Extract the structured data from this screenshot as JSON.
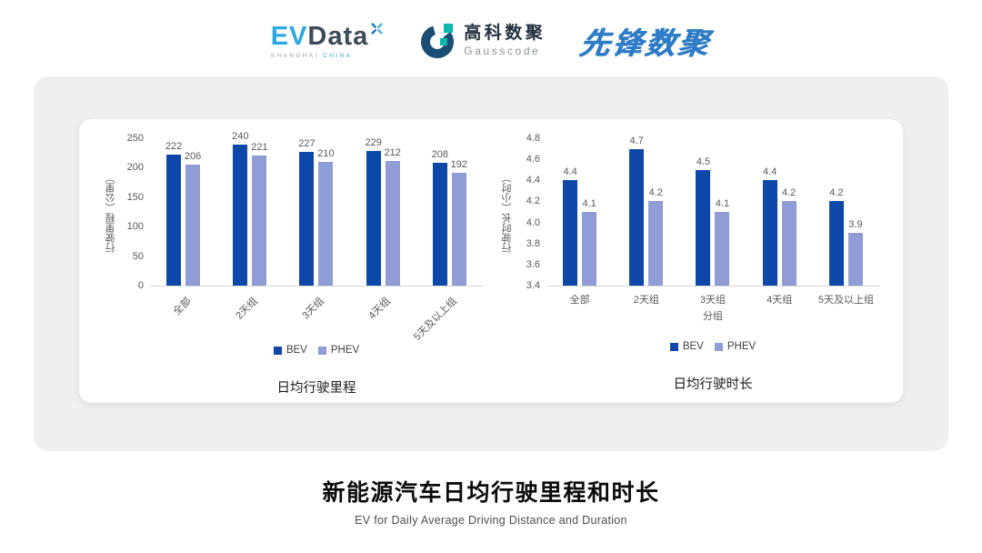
{
  "header": {
    "evdata": {
      "ev": "EV",
      "data": "Data",
      "sub_left": "SHANGHAI",
      "sub_right": "CHINA"
    },
    "gausscode": {
      "cn": "高科数聚",
      "en": "Gausscode"
    },
    "xianfeng": {
      "text": "先锋数聚"
    }
  },
  "colors": {
    "bev": "#0D48A8",
    "phev": "#8F9CD5",
    "card_bg": "#EFEFEF",
    "axis_line": "#D6D6D6",
    "tick_text": "#595959",
    "evdata_blue": "#2AA9E0",
    "gausscode_teal": "#0BB8AE",
    "xianfeng_blue": "#2E7CC6"
  },
  "chart_data": [
    {
      "type": "bar",
      "title": "日均行驶里程",
      "ylabel": "行驶里程（公里）",
      "xlabel": "",
      "categories": [
        "全部",
        "2天组",
        "3天组",
        "4天组",
        "5天及以上组"
      ],
      "category_rotation": -45,
      "ylim": [
        0,
        250
      ],
      "yticks": [
        "0",
        "50",
        "100",
        "150",
        "200",
        "250"
      ],
      "grid": false,
      "legend_position": "bottom",
      "legend": [
        "BEV",
        "PHEV"
      ],
      "series": [
        {
          "name": "BEV",
          "color": "#0D48A8",
          "values": [
            "222",
            "240",
            "227",
            "229",
            "208"
          ]
        },
        {
          "name": "PHEV",
          "color": "#8F9CD5",
          "values": [
            "206",
            "221",
            "210",
            "212",
            "192"
          ]
        }
      ]
    },
    {
      "type": "bar",
      "title": "日均行驶时长",
      "ylabel": "行驶时长（小时）",
      "xlabel": "分组",
      "categories": [
        "全部",
        "2天组",
        "3天组",
        "4天组",
        "5天及以上组"
      ],
      "category_rotation": 0,
      "ylim": [
        3.4,
        4.8
      ],
      "yticks": [
        "3.4",
        "3.6",
        "3.8",
        "4.0",
        "4.2",
        "4.4",
        "4.6",
        "4.8"
      ],
      "grid": false,
      "legend_position": "bottom",
      "legend": [
        "BEV",
        "PHEV"
      ],
      "series": [
        {
          "name": "BEV",
          "color": "#0D48A8",
          "values": [
            "4.4",
            "4.7",
            "4.5",
            "4.4",
            "4.2"
          ]
        },
        {
          "name": "PHEV",
          "color": "#8F9CD5",
          "values": [
            "4.1",
            "4.2",
            "4.1",
            "4.2",
            "3.9"
          ]
        }
      ]
    }
  ],
  "footer": {
    "title": "新能源汽车日均行驶里程和时长",
    "subtitle": "EV for Daily Average Driving Distance and Duration"
  }
}
